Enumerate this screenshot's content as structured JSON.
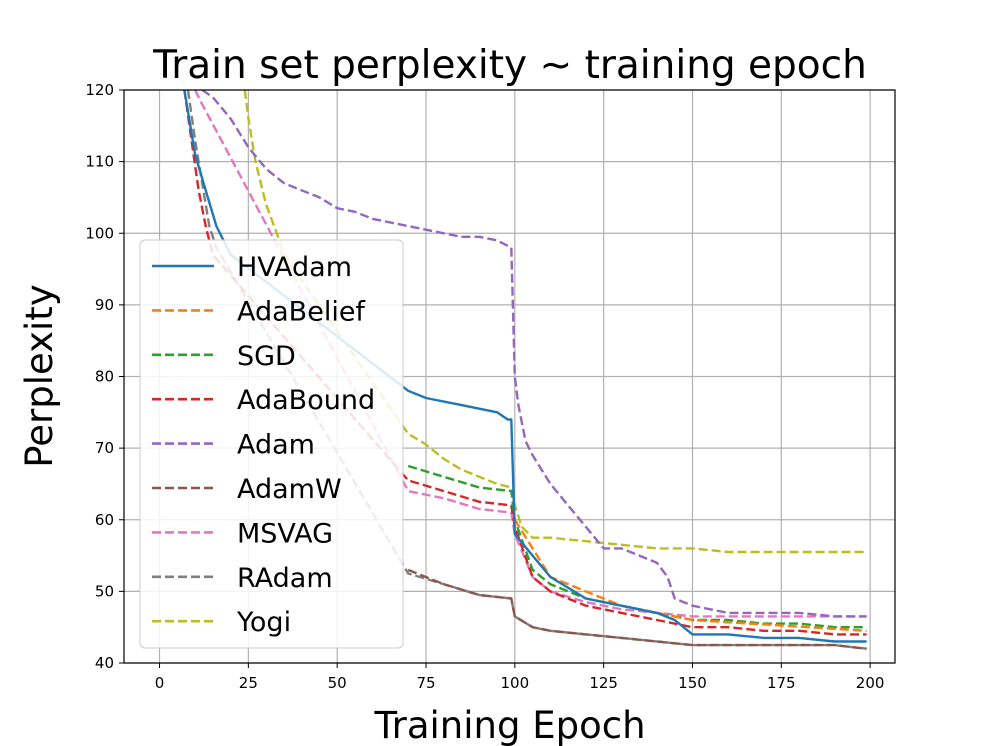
{
  "chart_data": {
    "type": "line",
    "title": "Train set perplexity ~ training epoch",
    "xlabel": "Training Epoch",
    "ylabel": "Perplexity",
    "xlim": [
      -10,
      207
    ],
    "ylim": [
      40,
      120
    ],
    "xticks": [
      0,
      25,
      50,
      75,
      100,
      125,
      150,
      175,
      200
    ],
    "yticks": [
      40,
      50,
      60,
      70,
      80,
      90,
      100,
      110,
      120
    ],
    "xtick_labels": [
      "0",
      "25",
      "50",
      "75",
      "100",
      "125",
      "150",
      "175",
      "200"
    ],
    "ytick_labels": [
      "40",
      "50",
      "60",
      "70",
      "80",
      "90",
      "100",
      "110",
      "120"
    ],
    "grid": true,
    "legend_position": "center-left",
    "series": [
      {
        "name": "HVAdam",
        "color": "#1f77b4",
        "style": "solid",
        "x": [
          7,
          10,
          13,
          16,
          18,
          20,
          70,
          75,
          85,
          95,
          98,
          99,
          100,
          105,
          110,
          120,
          130,
          140,
          145,
          150,
          160,
          170,
          180,
          190,
          199
        ],
        "y": [
          120,
          111,
          106,
          101,
          99,
          97,
          78,
          77,
          76,
          75,
          74,
          74,
          58,
          55,
          52,
          49,
          48,
          47,
          46,
          44,
          44,
          43.5,
          43.5,
          43,
          43
        ]
      },
      {
        "name": "AdaBelief",
        "color": "#ff7f0e",
        "style": "dashed",
        "x": [
          100,
          110,
          130,
          150,
          199
        ],
        "y": [
          60,
          52,
          48,
          46,
          44.5
        ]
      },
      {
        "name": "SGD",
        "color": "#2ca02c",
        "style": "dashed",
        "x": [
          70,
          80,
          90,
          99,
          100,
          105,
          110,
          120,
          130,
          140,
          150,
          160,
          170,
          180,
          190,
          199
        ],
        "y": [
          67.5,
          66,
          64.5,
          64,
          60,
          53,
          51,
          49,
          48,
          47,
          46,
          46,
          45.5,
          45.5,
          45,
          45
        ]
      },
      {
        "name": "AdaBound",
        "color": "#d62728",
        "style": "dashed",
        "x": [
          7,
          9,
          11,
          13,
          15,
          70,
          80,
          90,
          99,
          100,
          105,
          110,
          120,
          130,
          140,
          150,
          160,
          170,
          180,
          190,
          199
        ],
        "y": [
          120,
          113,
          106,
          101,
          97,
          65.5,
          64,
          62.5,
          62,
          59,
          52,
          50,
          48,
          47,
          46,
          45,
          45,
          44.5,
          44.5,
          44,
          44
        ]
      },
      {
        "name": "Adam",
        "color": "#9467bd",
        "style": "dashed",
        "x": [
          12,
          15,
          20,
          25,
          30,
          35,
          40,
          45,
          50,
          55,
          60,
          65,
          70,
          75,
          80,
          85,
          90,
          95,
          99,
          100,
          101,
          103,
          105,
          110,
          115,
          120,
          125,
          130,
          135,
          140,
          143,
          145,
          150,
          155,
          160,
          170,
          180,
          190,
          199
        ],
        "y": [
          120,
          119,
          116,
          112,
          109,
          107,
          106,
          105,
          103.5,
          103,
          102,
          101.5,
          101,
          100.5,
          100,
          99.5,
          99.5,
          99,
          98,
          80,
          76,
          71,
          69,
          65,
          62,
          59,
          56,
          56,
          55,
          54,
          52,
          49,
          48,
          47.5,
          47,
          47,
          47,
          46.5,
          46.5
        ]
      },
      {
        "name": "AdamW",
        "color": "#8c564b",
        "style": "dashed",
        "x": [
          70,
          80,
          90,
          99,
          100,
          105,
          110,
          120,
          130,
          140,
          150,
          160,
          170,
          180,
          190,
          199
        ],
        "y": [
          53,
          51,
          49.5,
          49,
          46.5,
          45,
          44.5,
          44,
          43.5,
          43,
          42.5,
          42.5,
          42.5,
          42.5,
          42.5,
          42
        ]
      },
      {
        "name": "MSVAG",
        "color": "#e377c2",
        "style": "dashed",
        "x": [
          10,
          12,
          70,
          80,
          90,
          99,
          100,
          105,
          110,
          120,
          130,
          140,
          150,
          160,
          170,
          180,
          190,
          199
        ],
        "y": [
          120,
          118,
          64,
          63,
          61.5,
          61,
          58,
          52,
          50,
          48.5,
          47.5,
          47,
          46.5,
          46.5,
          46.5,
          46.5,
          46.5,
          46.5
        ]
      },
      {
        "name": "RAdam",
        "color": "#7f7f7f",
        "style": "dashed",
        "x": [
          8,
          10,
          12,
          14,
          16,
          70,
          80,
          90,
          99,
          100,
          105,
          110,
          120,
          130,
          140,
          150,
          160,
          170,
          180,
          190,
          199
        ],
        "y": [
          120,
          113,
          107,
          101,
          98,
          52.5,
          51,
          49.5,
          49,
          46.5,
          45,
          44.5,
          44,
          43.5,
          43,
          42.5,
          42.5,
          42.5,
          42.5,
          42.5,
          42
        ]
      },
      {
        "name": "Yogi",
        "color": "#bcbd22",
        "style": "dashed",
        "x": [
          24,
          25,
          27,
          30,
          33,
          35,
          70,
          75,
          80,
          85,
          90,
          95,
          99,
          100,
          102,
          105,
          110,
          120,
          130,
          140,
          150,
          160,
          170,
          180,
          190,
          199
        ],
        "y": [
          120,
          116,
          110,
          104,
          100,
          97,
          72,
          70.5,
          68.5,
          67,
          66,
          65,
          64.5,
          62,
          59,
          57.5,
          57.5,
          57,
          56.5,
          56,
          56,
          55.5,
          55.5,
          55.5,
          55.5,
          55.5
        ]
      }
    ]
  }
}
